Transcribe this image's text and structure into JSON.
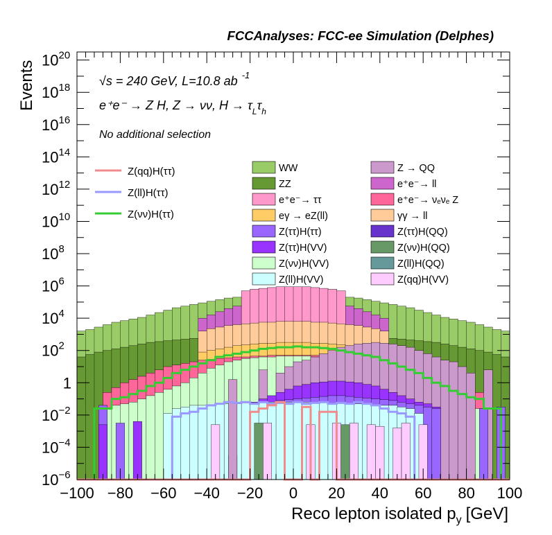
{
  "chart_data": {
    "type": "histogram",
    "title": "FCCAnalyses: FCC-ee Simulation (Delphes)",
    "xlabel": "Reco lepton isolated p",
    "xlabel_sub": "y",
    "xlabel_unit": "[GeV]",
    "ylabel": "Events",
    "xlim": [
      -100,
      100
    ],
    "ylim_log10": [
      -6,
      20.5
    ],
    "log_y": true,
    "x_ticks": [
      -100,
      -80,
      -60,
      -40,
      -20,
      0,
      20,
      40,
      60,
      80,
      100
    ],
    "x_tick_labels": [
      "−100",
      "−80",
      "−60",
      "−40",
      "−20",
      "0",
      "20",
      "40",
      "60",
      "80",
      "100"
    ],
    "y_tick_labels": [
      {
        "exp": 20,
        "base": "10",
        "sup": "20"
      },
      {
        "exp": 18,
        "base": "10",
        "sup": "18"
      },
      {
        "exp": 16,
        "base": "10",
        "sup": "16"
      },
      {
        "exp": 14,
        "base": "10",
        "sup": "14"
      },
      {
        "exp": 12,
        "base": "10",
        "sup": "12"
      },
      {
        "exp": 10,
        "base": "10",
        "sup": "10"
      },
      {
        "exp": 8,
        "base": "10",
        "sup": "8"
      },
      {
        "exp": 6,
        "base": "10",
        "sup": "6"
      },
      {
        "exp": 4,
        "base": "10",
        "sup": "4"
      },
      {
        "exp": 2,
        "base": "10",
        "sup": "2"
      },
      {
        "exp": 0,
        "base": "1",
        "sup": ""
      },
      {
        "exp": -2,
        "base": "10",
        "sup": "−2"
      },
      {
        "exp": -4,
        "base": "10",
        "sup": "−4"
      },
      {
        "exp": -6,
        "base": "10",
        "sup": "−6"
      }
    ],
    "annotations": {
      "energy": "√s = 240 GeV, L=10.8 ab",
      "lumi_exp": "-1",
      "process": "e⁺e⁻ → Z H, Z → νν, H → τ",
      "tau_l": "L",
      "tau_h": "h",
      "selection": "No additional selection"
    },
    "legend_signal": [
      {
        "name": "Z(qq)H(ττ)",
        "color": "#f08c8c"
      },
      {
        "name": "Z(ll)H(ττ)",
        "color": "#9999ff"
      },
      {
        "name": "Z(νν)H(ττ)",
        "color": "#33cc33"
      }
    ],
    "legend_background": [
      {
        "name": "WW",
        "color": "#99cc66"
      },
      {
        "name": "Z → QQ",
        "color": "#cc99cc"
      },
      {
        "name": "ZZ",
        "color": "#669933"
      },
      {
        "name": "e⁺e⁻→ ll",
        "color": "#cc66cc"
      },
      {
        "name": "e⁺e⁻→ ττ",
        "color": "#ff99cc"
      },
      {
        "name": "e⁺e⁻→ νₑνₑ Z",
        "color": "#ff6699"
      },
      {
        "name": "eγ → eZ(ll)",
        "color": "#ffcc66"
      },
      {
        "name": "γγ → ll",
        "color": "#ffcc99"
      },
      {
        "name": "Z(ττ)H(ττ)",
        "color": "#9966ff"
      },
      {
        "name": "Z(ττ)H(QQ)",
        "color": "#6633cc"
      },
      {
        "name": "Z(ττ)H(VV)",
        "color": "#9933ff"
      },
      {
        "name": "Z(νν)H(QQ)",
        "color": "#669966"
      },
      {
        "name": "Z(νν)H(VV)",
        "color": "#ccffcc"
      },
      {
        "name": "Z(ll)H(QQ)",
        "color": "#669999"
      },
      {
        "name": "Z(ll)H(VV)",
        "color": "#ccffff"
      },
      {
        "name": "Z(qq)H(VV)",
        "color": "#ffccff"
      }
    ],
    "bins": {
      "start": -100,
      "width": 4
    },
    "stack_envelopes": [
      {
        "name": "WW",
        "color": "#99cc66",
        "log10": [
          3.2,
          3.3,
          3.45,
          3.6,
          3.75,
          3.85,
          3.95,
          4.05,
          4.2,
          4.35,
          4.5,
          4.65,
          4.75,
          4.85,
          4.95,
          5.05,
          5.15,
          5.25,
          5.3,
          5.35,
          5.4,
          5.45,
          5.5,
          5.5,
          5.55,
          5.55,
          5.5,
          5.5,
          5.45,
          5.4,
          5.35,
          5.3,
          5.25,
          5.15,
          5.05,
          4.95,
          4.85,
          4.75,
          4.65,
          4.5,
          4.35,
          4.2,
          4.05,
          3.95,
          3.85,
          3.75,
          3.6,
          3.45,
          3.3,
          3.2
        ]
      },
      {
        "name": "ZZ",
        "color": "#669933",
        "log10": [
          1.6,
          1.75,
          1.9,
          2.0,
          2.1,
          2.2,
          2.3,
          2.4,
          2.5,
          2.55,
          2.6,
          2.65,
          2.7,
          2.75,
          2.8,
          2.85,
          2.9,
          2.95,
          3.0,
          3.0,
          3.05,
          3.05,
          3.1,
          3.1,
          3.1,
          3.1,
          3.1,
          3.1,
          3.05,
          3.05,
          3.0,
          3.0,
          2.95,
          2.9,
          2.85,
          2.8,
          2.75,
          2.7,
          2.65,
          2.6,
          2.55,
          2.5,
          2.4,
          2.3,
          2.2,
          2.1,
          2.0,
          1.9,
          1.75,
          1.6
        ]
      },
      {
        "name": "e⁺e⁻→ ll",
        "color": "#cc66cc",
        "log10": [
          null,
          null,
          null,
          null,
          null,
          null,
          null,
          null,
          null,
          null,
          null,
          null,
          null,
          null,
          4.0,
          4.2,
          4.4,
          4.6,
          4.75,
          4.85,
          4.95,
          5.05,
          5.1,
          5.15,
          5.2,
          5.2,
          5.15,
          5.1,
          5.05,
          4.95,
          4.85,
          4.75,
          4.6,
          4.4,
          4.2,
          4.0,
          null,
          null,
          null,
          null,
          null,
          null,
          null,
          null,
          null,
          null,
          null,
          null,
          null,
          null
        ]
      },
      {
        "name": "e⁺e⁻→ ττ",
        "color": "#ff99cc",
        "log10": [
          null,
          null,
          null,
          null,
          null,
          null,
          null,
          null,
          null,
          null,
          null,
          null,
          null,
          null,
          null,
          null,
          null,
          null,
          null,
          5.7,
          5.8,
          5.85,
          5.9,
          5.95,
          5.95,
          5.95,
          5.95,
          5.9,
          5.85,
          5.8,
          5.7,
          null,
          null,
          null,
          null,
          null,
          null,
          null,
          null,
          null,
          null,
          null,
          null,
          null,
          null,
          null,
          null,
          null,
          null,
          null
        ]
      },
      {
        "name": "γγ → ll",
        "color": "#ffcc99",
        "log10": [
          null,
          null,
          null,
          null,
          null,
          null,
          null,
          null,
          null,
          null,
          null,
          null,
          null,
          null,
          3.2,
          3.35,
          3.45,
          3.55,
          3.6,
          3.65,
          3.7,
          3.75,
          3.75,
          3.8,
          3.8,
          3.8,
          3.8,
          3.75,
          3.75,
          3.7,
          3.65,
          3.6,
          3.55,
          3.45,
          3.35,
          3.2,
          null,
          null,
          null,
          null,
          null,
          null,
          null,
          null,
          null,
          null,
          null,
          null,
          null,
          null
        ]
      },
      {
        "name": "eγ → eZ(ll)",
        "color": "#ffcc66",
        "log10": [
          null,
          null,
          null,
          null,
          null,
          null,
          null,
          null,
          null,
          null,
          null,
          null,
          null,
          null,
          1.9,
          2.0,
          2.1,
          2.2,
          2.3,
          2.35,
          2.4,
          2.45,
          2.45,
          2.5,
          2.5,
          2.5,
          2.5,
          2.45,
          2.45,
          2.4,
          2.35,
          2.3,
          2.2,
          2.1,
          2.0,
          1.9,
          null,
          null,
          null,
          null,
          null,
          null,
          null,
          null,
          null,
          null,
          null,
          null,
          null,
          null
        ]
      },
      {
        "name": "e⁺e⁻→ νₑνₑ Z",
        "color": "#ff6699",
        "log10": [
          -6,
          -6,
          -6,
          -0.6,
          -0.3,
          0.0,
          0.2,
          0.4,
          0.6,
          0.8,
          1.0,
          1.1,
          1.2,
          1.3,
          1.4,
          1.45,
          1.5,
          1.55,
          1.6,
          1.6,
          1.65,
          1.65,
          1.7,
          1.7,
          1.7,
          1.7,
          1.7,
          1.7,
          1.65,
          1.65,
          1.6,
          1.6,
          1.55,
          1.5,
          1.45,
          1.4,
          1.3,
          1.2,
          1.1,
          1.0,
          0.8,
          0.6,
          0.4,
          0.2,
          0.0,
          -0.3,
          -0.6,
          -6,
          -6,
          -6
        ]
      },
      {
        "name": "Z(νν)H(VV)",
        "color": "#ccffcc",
        "log10": [
          -6,
          -6,
          -6,
          -1.6,
          -1.4,
          -1.3,
          -1.2,
          -1.0,
          -0.8,
          -0.6,
          -0.4,
          -0.2,
          0.0,
          0.3,
          0.6,
          0.9,
          1.1,
          1.3,
          1.4,
          1.5,
          1.55,
          1.6,
          1.6,
          1.65,
          1.65,
          1.65,
          1.65,
          1.6,
          1.6,
          1.55,
          1.5,
          1.4,
          1.3,
          1.1,
          0.9,
          0.6,
          0.3,
          0.0,
          -0.2,
          -0.4,
          -0.6,
          -0.8,
          -1.0,
          -1.2,
          -1.3,
          -1.4,
          -1.6,
          -6,
          -6,
          -6
        ]
      },
      {
        "name": "Z → QQ",
        "color": "#cc99cc",
        "log10": [
          null,
          null,
          null,
          null,
          null,
          null,
          null,
          null,
          null,
          null,
          null,
          null,
          null,
          null,
          null,
          null,
          null,
          null,
          null,
          null,
          null,
          0.8,
          null,
          0.6,
          1.0,
          1.3,
          1.4,
          1.6,
          1.8,
          2.0,
          2.2,
          2.3,
          2.4,
          2.45,
          2.5,
          2.45,
          2.4,
          2.3,
          2.2,
          2.0,
          1.8,
          1.6,
          1.4,
          1.3,
          1.0,
          0.6,
          null,
          0.8,
          null,
          null
        ]
      },
      {
        "name": "Z(ττ)H(VV)",
        "color": "#9933ff",
        "log10": [
          null,
          null,
          null,
          null,
          null,
          null,
          null,
          null,
          null,
          null,
          null,
          null,
          null,
          null,
          null,
          null,
          null,
          null,
          -1.5,
          -1.3,
          -1.2,
          -1.0,
          -0.8,
          -0.6,
          -0.4,
          -0.2,
          -0.1,
          0.0,
          0.05,
          0.1,
          0.1,
          0.05,
          0.0,
          -0.1,
          -0.2,
          -0.4,
          -0.6,
          -0.8,
          -1.0,
          -1.2,
          -1.3,
          -1.5,
          null,
          null,
          null,
          null,
          null,
          null,
          null,
          null
        ]
      },
      {
        "name": "Z(ττ)H(ττ)",
        "color": "#9966ff",
        "log10": [
          null,
          null,
          null,
          null,
          null,
          null,
          null,
          null,
          null,
          null,
          null,
          null,
          null,
          null,
          null,
          null,
          null,
          null,
          -1.6,
          -1.5,
          -1.4,
          -1.3,
          -1.2,
          -1.1,
          -1.05,
          -1.0,
          -0.95,
          -0.9,
          -0.85,
          -0.8,
          -0.8,
          -0.85,
          -0.9,
          -0.95,
          -1.0,
          -1.05,
          -1.1,
          -1.2,
          -1.3,
          -1.4,
          -1.5,
          -1.6,
          null,
          null,
          null,
          null,
          null,
          null,
          null,
          null
        ]
      },
      {
        "name": "Z(ll)H(VV)",
        "color": "#ccffff",
        "log10": [
          -6,
          -6,
          -6,
          -6,
          -6,
          -6,
          -6,
          -6,
          -6,
          -6,
          -1.9,
          -1.6,
          -1.5,
          -1.4,
          -1.4,
          -1.35,
          -1.3,
          -1.3,
          -1.3,
          -1.25,
          -1.25,
          -1.2,
          -1.2,
          -1.2,
          -1.2,
          -1.2,
          -1.2,
          -1.2,
          -1.2,
          -1.25,
          -1.25,
          -1.3,
          -1.3,
          -1.3,
          -1.35,
          -1.4,
          -1.4,
          -1.5,
          -1.6,
          -1.9,
          -6,
          -6,
          -6,
          -6,
          -6,
          -6,
          -6,
          -6,
          -6,
          -6
        ]
      }
    ],
    "spikes": [
      {
        "x": -90,
        "log10": -1.4,
        "color": "#9966ff"
      },
      {
        "x": -90,
        "log10": -2.6,
        "color": "#9933ff"
      },
      {
        "x": -82,
        "log10": -2.5,
        "color": "#9966ff"
      },
      {
        "x": -74,
        "log10": -2.4,
        "color": "#9933ff"
      },
      {
        "x": -38,
        "log10": -2.6,
        "color": "#ffccff"
      },
      {
        "x": -30,
        "log10": -4.5,
        "color": "#6633cc"
      },
      {
        "x": -30,
        "log10": 0.2,
        "color": "#cc99cc"
      },
      {
        "x": -14,
        "log10": -2.5,
        "color": "#ffccff"
      },
      {
        "x": 6,
        "log10": -2.6,
        "color": "#ffccff"
      },
      {
        "x": 18,
        "log10": -2.5,
        "color": "#ffccff"
      },
      {
        "x": 26,
        "log10": -2.5,
        "color": "#ffccff"
      },
      {
        "x": 34,
        "log10": -2.6,
        "color": "#ffccff"
      },
      {
        "x": 38,
        "log10": -2.7,
        "color": "#ffccff"
      },
      {
        "x": 46,
        "log10": -2.8,
        "color": "#ffccff"
      },
      {
        "x": -18,
        "log10": -2.5,
        "color": "#669966"
      },
      {
        "x": 22,
        "log10": -2.6,
        "color": "#669966"
      },
      {
        "x": 50,
        "log10": -2.5,
        "color": "#ffccff"
      },
      {
        "x": 58,
        "log10": -2.6,
        "color": "#ffccff"
      },
      {
        "x": 86,
        "log10": -1.6,
        "color": "#9966ff"
      },
      {
        "x": 94,
        "log10": -1.5,
        "color": "#9966ff"
      }
    ],
    "signal_lines": [
      {
        "name": "Z(νν)H(ττ)",
        "color": "#33cc33",
        "log10": [
          -6,
          -6,
          -1.6,
          -1.6,
          -1.0,
          -0.9,
          -0.7,
          -0.5,
          -0.2,
          0.0,
          0.3,
          0.6,
          0.8,
          1.0,
          1.2,
          1.4,
          1.6,
          1.7,
          1.8,
          1.9,
          2.0,
          2.1,
          2.15,
          2.2,
          2.2,
          2.25,
          2.2,
          2.2,
          2.15,
          2.1,
          2.0,
          1.9,
          1.8,
          1.7,
          1.6,
          1.4,
          1.2,
          1.0,
          0.8,
          0.6,
          0.3,
          0.0,
          -0.2,
          -0.5,
          -0.7,
          -0.9,
          -1.0,
          -1.6,
          -1.6,
          -6
        ]
      },
      {
        "name": "Z(ll)H(ττ)",
        "color": "#9999ff",
        "log10": [
          -6,
          -6,
          -6,
          -6,
          -6,
          -6,
          -6,
          -6,
          -6,
          -6,
          -6,
          -2.1,
          -1.9,
          -1.8,
          -1.6,
          -1.4,
          -1.3,
          -1.2,
          -1.25,
          -1.2,
          -1.3,
          -1.2,
          -1.3,
          -1.25,
          -1.3,
          -1.2,
          -1.3,
          -1.25,
          -1.2,
          -1.3,
          -1.25,
          -1.3,
          -1.2,
          -1.3,
          -1.4,
          -1.6,
          -1.8,
          -1.9,
          -2.1,
          -6,
          -6,
          -6,
          -6,
          -6,
          -6,
          -6,
          -6,
          -6,
          -6,
          -6
        ]
      },
      {
        "name": "Z(qq)H(ττ)",
        "color": "#f08c8c",
        "log10": [
          -6,
          -6,
          -6,
          -6,
          -6,
          -6,
          -6,
          -6,
          -6,
          -6,
          -6,
          -6,
          -6,
          -6,
          -6,
          -6,
          -6,
          -6,
          -6,
          -6,
          -1.8,
          -1.6,
          -1.4,
          -1.2,
          -6,
          -6,
          -1.5,
          -6,
          -1.8,
          -1.8,
          -6,
          -6,
          -6,
          -6,
          -6,
          -6,
          -6,
          -6,
          -6,
          -6,
          -6,
          -6,
          -6,
          -6,
          -6,
          -6,
          -6,
          -6,
          -6,
          -6
        ]
      }
    ]
  }
}
